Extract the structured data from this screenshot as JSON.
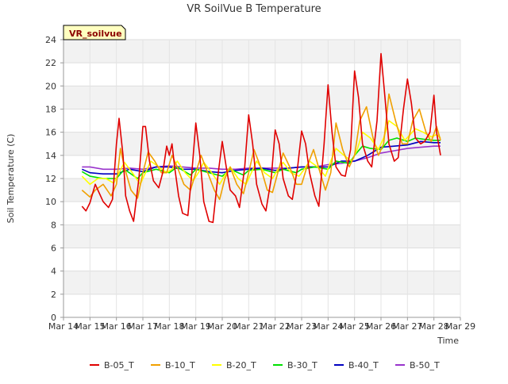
{
  "chart_data": {
    "type": "line",
    "title": "VR SoilVue B Temperature",
    "site_label": "VR_soilvue",
    "xlabel": "Time",
    "ylabel": "Soil Temperature (C)",
    "ylim": [
      0,
      24
    ],
    "yticks": [
      0,
      2,
      4,
      6,
      8,
      10,
      12,
      14,
      16,
      18,
      20,
      22,
      24
    ],
    "xlim_days": [
      14,
      29
    ],
    "xticks": [
      {
        "day": 14,
        "label": "Mar 14"
      },
      {
        "day": 15,
        "label": "Mar 15"
      },
      {
        "day": 16,
        "label": "Mar 16"
      },
      {
        "day": 17,
        "label": "Mar 17"
      },
      {
        "day": 18,
        "label": "Mar 18"
      },
      {
        "day": 19,
        "label": "Mar 19"
      },
      {
        "day": 20,
        "label": "Mar 20"
      },
      {
        "day": 21,
        "label": "Mar 21"
      },
      {
        "day": 22,
        "label": "Mar 22"
      },
      {
        "day": 23,
        "label": "Mar 23"
      },
      {
        "day": 24,
        "label": "Mar 24"
      },
      {
        "day": 25,
        "label": "Mar 25"
      },
      {
        "day": 26,
        "label": "Mar 26"
      },
      {
        "day": 27,
        "label": "Mar 27"
      },
      {
        "day": 28,
        "label": "Mar 28"
      },
      {
        "day": 29,
        "label": "Mar 29"
      }
    ],
    "grid": true,
    "legend_position": "bottom",
    "series": [
      {
        "name": "B-05_T",
        "color": "#e00000",
        "x": [
          14.7,
          14.85,
          15.0,
          15.2,
          15.5,
          15.7,
          15.85,
          16.0,
          16.1,
          16.25,
          16.35,
          16.5,
          16.65,
          16.85,
          17.0,
          17.1,
          17.25,
          17.4,
          17.6,
          17.75,
          17.9,
          18.0,
          18.1,
          18.2,
          18.35,
          18.5,
          18.7,
          18.85,
          19.0,
          19.15,
          19.3,
          19.5,
          19.65,
          19.85,
          20.0,
          20.15,
          20.3,
          20.5,
          20.65,
          20.85,
          21.0,
          21.15,
          21.3,
          21.5,
          21.65,
          21.85,
          22.0,
          22.15,
          22.3,
          22.5,
          22.65,
          22.85,
          23.0,
          23.15,
          23.3,
          23.5,
          23.65,
          23.85,
          24.0,
          24.15,
          24.3,
          24.5,
          24.65,
          24.85,
          25.0,
          25.15,
          25.3,
          25.5,
          25.65,
          25.85,
          26.0,
          26.15,
          26.3,
          26.5,
          26.65,
          26.85,
          27.0,
          27.15,
          27.3,
          27.5,
          27.65,
          27.85,
          28.0,
          28.1,
          28.25
        ],
        "y": [
          9.6,
          9.2,
          9.9,
          11.5,
          10.0,
          9.5,
          10.2,
          15.0,
          17.2,
          14.0,
          10.5,
          9.2,
          8.3,
          12.0,
          16.5,
          16.5,
          13.5,
          11.8,
          11.2,
          12.5,
          14.8,
          14.0,
          15.0,
          13.0,
          10.5,
          9.0,
          8.8,
          12.5,
          16.8,
          14.0,
          10.0,
          8.3,
          8.2,
          12.5,
          15.2,
          13.0,
          11.0,
          10.5,
          9.5,
          13.0,
          17.5,
          15.0,
          11.5,
          9.8,
          9.2,
          12.0,
          16.2,
          15.0,
          12.0,
          10.5,
          10.2,
          13.0,
          16.1,
          15.0,
          12.5,
          10.5,
          9.6,
          15.0,
          20.1,
          16.0,
          13.0,
          12.3,
          12.2,
          14.5,
          21.3,
          19.0,
          15.0,
          13.5,
          13.0,
          17.0,
          22.8,
          19.0,
          15.0,
          13.5,
          13.8,
          18.0,
          20.6,
          18.5,
          15.5,
          15.0,
          15.2,
          16.0,
          19.2,
          16.0,
          14.0
        ]
      },
      {
        "name": "B-10_T",
        "color": "#f0a000",
        "x": [
          14.7,
          15.0,
          15.2,
          15.5,
          15.8,
          16.0,
          16.15,
          16.3,
          16.55,
          16.8,
          17.0,
          17.2,
          17.45,
          17.7,
          17.9,
          18.1,
          18.3,
          18.55,
          18.8,
          19.0,
          19.2,
          19.45,
          19.7,
          19.9,
          20.1,
          20.3,
          20.55,
          20.8,
          21.0,
          21.2,
          21.45,
          21.7,
          21.9,
          22.1,
          22.3,
          22.55,
          22.8,
          23.0,
          23.2,
          23.45,
          23.7,
          23.9,
          24.1,
          24.3,
          24.55,
          24.8,
          25.0,
          25.2,
          25.45,
          25.7,
          25.9,
          26.1,
          26.3,
          26.55,
          26.8,
          27.0,
          27.2,
          27.45,
          27.7,
          27.9,
          28.1,
          28.25
        ],
        "y": [
          11.0,
          10.4,
          11.0,
          11.5,
          10.5,
          11.5,
          14.6,
          13.0,
          11.0,
          10.3,
          12.5,
          14.3,
          13.5,
          12.5,
          12.5,
          14.0,
          13.0,
          11.5,
          11.0,
          12.5,
          14.0,
          12.5,
          11.0,
          10.2,
          12.0,
          13.0,
          11.5,
          10.7,
          12.5,
          14.5,
          13.0,
          11.0,
          10.8,
          12.5,
          14.2,
          13.0,
          11.5,
          11.5,
          13.0,
          14.5,
          12.5,
          11.0,
          12.5,
          16.8,
          14.5,
          13.0,
          14.0,
          17.0,
          18.2,
          15.5,
          14.0,
          15.0,
          19.3,
          17.0,
          15.0,
          15.0,
          17.0,
          18.0,
          16.0,
          15.2,
          16.5,
          15.3
        ]
      },
      {
        "name": "B-20_T",
        "color": "#ffff00",
        "x": [
          14.7,
          15.0,
          15.3,
          15.6,
          15.9,
          16.1,
          16.3,
          16.6,
          16.9,
          17.1,
          17.3,
          17.6,
          17.9,
          18.1,
          18.3,
          18.6,
          18.9,
          19.1,
          19.3,
          19.6,
          19.9,
          20.1,
          20.3,
          20.6,
          20.9,
          21.1,
          21.3,
          21.6,
          21.9,
          22.1,
          22.3,
          22.6,
          22.9,
          23.1,
          23.3,
          23.6,
          23.9,
          24.1,
          24.3,
          24.6,
          24.9,
          25.1,
          25.3,
          25.6,
          25.9,
          26.1,
          26.3,
          26.6,
          26.9,
          27.1,
          27.3,
          27.6,
          27.9,
          28.1,
          28.25
        ],
        "y": [
          12.2,
          11.5,
          12.0,
          12.0,
          11.6,
          12.5,
          13.4,
          12.5,
          11.5,
          12.5,
          13.5,
          13.0,
          12.5,
          12.8,
          13.5,
          12.5,
          11.8,
          12.5,
          13.4,
          12.5,
          11.5,
          12.3,
          13.0,
          12.0,
          11.5,
          12.5,
          13.5,
          12.5,
          12.0,
          12.8,
          13.4,
          12.5,
          12.2,
          12.8,
          13.5,
          13.0,
          12.2,
          13.5,
          14.6,
          14.0,
          13.5,
          14.5,
          16.0,
          15.5,
          14.5,
          15.5,
          17.0,
          16.5,
          15.3,
          15.8,
          16.3,
          16.0,
          15.6,
          15.8,
          15.5
        ]
      },
      {
        "name": "B-30_T",
        "color": "#00e000",
        "x": [
          14.7,
          15.0,
          15.5,
          16.0,
          16.3,
          16.8,
          17.0,
          17.5,
          18.0,
          18.3,
          18.8,
          19.0,
          19.5,
          20.0,
          20.3,
          20.8,
          21.0,
          21.5,
          22.0,
          22.3,
          22.8,
          23.0,
          23.5,
          24.0,
          24.3,
          24.8,
          25.0,
          25.3,
          25.6,
          26.0,
          26.3,
          26.6,
          27.0,
          27.3,
          27.6,
          28.0,
          28.25
        ],
        "y": [
          12.6,
          12.2,
          12.0,
          12.0,
          12.8,
          12.0,
          12.5,
          12.8,
          12.5,
          13.0,
          12.3,
          12.8,
          12.5,
          12.2,
          12.8,
          12.3,
          12.7,
          12.8,
          12.5,
          12.8,
          12.5,
          12.8,
          13.0,
          12.8,
          13.5,
          13.3,
          14.0,
          14.8,
          14.6,
          14.5,
          15.3,
          15.5,
          15.2,
          15.5,
          15.4,
          15.3,
          15.3
        ]
      },
      {
        "name": "B-40_T",
        "color": "#0000c0",
        "x": [
          14.7,
          15.0,
          15.5,
          16.0,
          16.5,
          17.0,
          17.5,
          18.0,
          18.5,
          19.0,
          19.5,
          20.0,
          20.5,
          21.0,
          21.5,
          22.0,
          22.5,
          23.0,
          23.5,
          24.0,
          24.5,
          25.0,
          25.5,
          26.0,
          26.5,
          27.0,
          27.5,
          28.0,
          28.25
        ],
        "y": [
          12.8,
          12.5,
          12.4,
          12.4,
          12.8,
          12.6,
          13.0,
          13.0,
          12.8,
          12.8,
          12.6,
          12.5,
          12.7,
          12.8,
          12.9,
          12.7,
          12.9,
          13.0,
          13.0,
          13.0,
          13.5,
          13.5,
          14.0,
          14.7,
          14.8,
          14.9,
          15.2,
          15.1,
          15.1
        ]
      },
      {
        "name": "B-50_T",
        "color": "#9933cc",
        "x": [
          14.7,
          15.0,
          15.5,
          16.0,
          16.5,
          17.0,
          17.5,
          18.0,
          18.5,
          19.0,
          19.5,
          20.0,
          20.5,
          21.0,
          21.5,
          22.0,
          22.5,
          23.0,
          23.5,
          24.0,
          24.5,
          25.0,
          25.5,
          26.0,
          26.5,
          27.0,
          27.5,
          28.0,
          28.25
        ],
        "y": [
          13.0,
          13.0,
          12.8,
          12.8,
          12.9,
          12.8,
          13.0,
          13.1,
          13.0,
          12.9,
          12.9,
          12.8,
          12.8,
          12.9,
          12.9,
          12.9,
          12.9,
          13.0,
          13.0,
          13.2,
          13.3,
          13.5,
          13.8,
          14.2,
          14.4,
          14.6,
          14.7,
          14.8,
          14.8
        ]
      }
    ]
  }
}
